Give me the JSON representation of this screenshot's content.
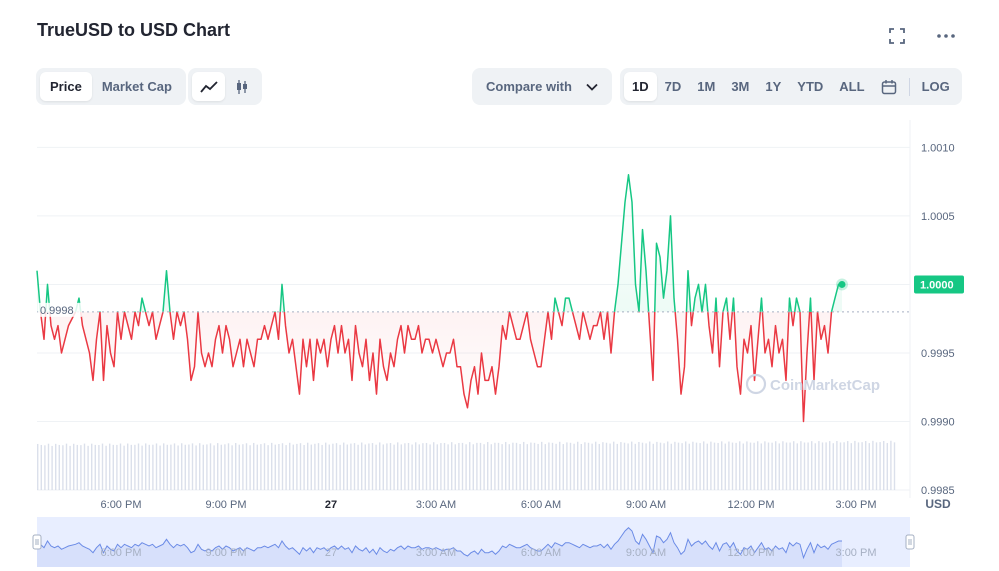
{
  "header": {
    "title": "TrueUSD to USD Chart"
  },
  "icons": {
    "expand": "expand-icon",
    "more": "more-icon",
    "line_chart": "line-chart-icon",
    "candlestick": "candlestick-icon",
    "calendar": "calendar-icon",
    "chevron": "chevron-down-icon"
  },
  "toolbar": {
    "metric_tabs": [
      "Price",
      "Market Cap"
    ],
    "active_metric": "Price",
    "compare_label": "Compare with",
    "ranges": [
      "1D",
      "7D",
      "1M",
      "3M",
      "1Y",
      "YTD",
      "ALL"
    ],
    "active_range": "1D",
    "log_label": "LOG"
  },
  "colors": {
    "up": "#16c784",
    "down": "#ea3943",
    "current_badge": "#16c784",
    "navigator_line": "#6b8be6",
    "navigator_fill": "#e8eeff",
    "volume": "#cfd6e4"
  },
  "chart_data": {
    "type": "line",
    "title": "TrueUSD to USD Chart",
    "currency": "USD",
    "baseline": 0.9998,
    "baseline_label": "0.9998",
    "current_value": 1.0,
    "current_label": "1.0000",
    "ylim": [
      0.9985,
      1.0012
    ],
    "y_ticks": [
      1.001,
      1.0005,
      0.9995,
      0.999,
      0.9985
    ],
    "y_tick_labels": [
      "1.0010",
      "1.0005",
      "0.9995",
      "0.9990",
      "0.9985"
    ],
    "x_ticks": [
      {
        "x": 3,
        "label": "6:00 PM"
      },
      {
        "x": 6,
        "label": "9:00 PM"
      },
      {
        "x": 9,
        "label": "27"
      },
      {
        "x": 12,
        "label": "3:00 AM"
      },
      {
        "x": 15,
        "label": "6:00 AM"
      },
      {
        "x": 18,
        "label": "9:00 AM"
      },
      {
        "x": 21,
        "label": "12:00 PM"
      },
      {
        "x": 24,
        "label": "3:00 PM"
      }
    ],
    "xlim": [
      0.6,
      25.2
    ],
    "x_unit": "hours",
    "watermark": "CoinMarketCap",
    "series": [
      {
        "values": [
          [
            0.6,
            1.0001
          ],
          [
            0.7,
            0.9998
          ],
          [
            0.8,
            0.9996
          ],
          [
            0.9,
            1.0
          ],
          [
            1.0,
            0.9997
          ],
          [
            1.1,
            0.9996
          ],
          [
            1.2,
            0.9997
          ],
          [
            1.3,
            0.9995
          ],
          [
            1.4,
            0.9996
          ],
          [
            1.5,
            0.9997
          ],
          [
            1.7,
            0.9998
          ],
          [
            1.8,
            0.9999
          ],
          [
            1.9,
            0.9997
          ],
          [
            2.0,
            0.9996
          ],
          [
            2.1,
            0.9995
          ],
          [
            2.2,
            0.9993
          ],
          [
            2.3,
            0.9996
          ],
          [
            2.4,
            0.9998
          ],
          [
            2.5,
            0.9993
          ],
          [
            2.6,
            0.9997
          ],
          [
            2.7,
            0.9995
          ],
          [
            2.8,
            0.9994
          ],
          [
            2.9,
            0.9998
          ],
          [
            3.0,
            0.9996
          ],
          [
            3.1,
            0.9998
          ],
          [
            3.2,
            0.9997
          ],
          [
            3.3,
            0.9996
          ],
          [
            3.4,
            0.9998
          ],
          [
            3.5,
            0.9997
          ],
          [
            3.6,
            0.9999
          ],
          [
            3.8,
            0.9997
          ],
          [
            3.9,
            0.9998
          ],
          [
            4.0,
            0.9996
          ],
          [
            4.1,
            0.9997
          ],
          [
            4.2,
            0.9998
          ],
          [
            4.3,
            1.0001
          ],
          [
            4.4,
            0.9998
          ],
          [
            4.5,
            0.9996
          ],
          [
            4.6,
            0.9998
          ],
          [
            4.7,
            0.9997
          ],
          [
            4.8,
            0.9998
          ],
          [
            4.9,
            0.9996
          ],
          [
            5.0,
            0.9993
          ],
          [
            5.1,
            0.9994
          ],
          [
            5.2,
            0.9998
          ],
          [
            5.3,
            0.9995
          ],
          [
            5.4,
            0.9994
          ],
          [
            5.5,
            0.9995
          ],
          [
            5.6,
            0.9994
          ],
          [
            5.7,
            0.9996
          ],
          [
            5.8,
            0.9997
          ],
          [
            5.9,
            0.9995
          ],
          [
            6.0,
            0.9997
          ],
          [
            6.1,
            0.9996
          ],
          [
            6.2,
            0.9994
          ],
          [
            6.3,
            0.9995
          ],
          [
            6.4,
            0.9996
          ],
          [
            6.5,
            0.9994
          ],
          [
            6.6,
            0.9996
          ],
          [
            6.7,
            0.9995
          ],
          [
            6.8,
            0.9994
          ],
          [
            6.9,
            0.9996
          ],
          [
            7.0,
            0.9996
          ],
          [
            7.1,
            0.9997
          ],
          [
            7.2,
            0.9996
          ],
          [
            7.3,
            0.9997
          ],
          [
            7.4,
            0.9998
          ],
          [
            7.5,
            0.9996
          ],
          [
            7.6,
            1.0
          ],
          [
            7.7,
            0.9997
          ],
          [
            7.8,
            0.9995
          ],
          [
            7.9,
            0.9996
          ],
          [
            8.0,
            0.9994
          ],
          [
            8.1,
            0.9992
          ],
          [
            8.2,
            0.9996
          ],
          [
            8.3,
            0.9994
          ],
          [
            8.4,
            0.9996
          ],
          [
            8.5,
            0.9993
          ],
          [
            8.6,
            0.9996
          ],
          [
            8.7,
            0.9995
          ],
          [
            8.8,
            0.9996
          ],
          [
            8.9,
            0.9994
          ],
          [
            9.0,
            0.9996
          ],
          [
            9.1,
            0.9997
          ],
          [
            9.2,
            0.9995
          ],
          [
            9.3,
            0.9997
          ],
          [
            9.4,
            0.9995
          ],
          [
            9.5,
            0.9996
          ],
          [
            9.6,
            0.9993
          ],
          [
            9.7,
            0.9997
          ],
          [
            9.8,
            0.9995
          ],
          [
            9.9,
            0.9994
          ],
          [
            10.0,
            0.9996
          ],
          [
            10.1,
            0.9993
          ],
          [
            10.2,
            0.9995
          ],
          [
            10.3,
            0.9992
          ],
          [
            10.4,
            0.9996
          ],
          [
            10.5,
            0.9994
          ],
          [
            10.6,
            0.9993
          ],
          [
            10.7,
            0.9995
          ],
          [
            10.8,
            0.9994
          ],
          [
            10.9,
            0.9996
          ],
          [
            11.0,
            0.9997
          ],
          [
            11.1,
            0.9995
          ],
          [
            11.2,
            0.9997
          ],
          [
            11.3,
            0.9996
          ],
          [
            11.4,
            0.9996
          ],
          [
            11.5,
            0.9997
          ],
          [
            11.6,
            0.9995
          ],
          [
            11.7,
            0.9996
          ],
          [
            11.8,
            0.9996
          ],
          [
            11.9,
            0.9995
          ],
          [
            12.0,
            0.9996
          ],
          [
            12.1,
            0.9995
          ],
          [
            12.2,
            0.9994
          ],
          [
            12.3,
            0.9995
          ],
          [
            12.4,
            0.9995
          ],
          [
            12.5,
            0.9996
          ],
          [
            12.6,
            0.9994
          ],
          [
            12.7,
            0.9994
          ],
          [
            12.8,
            0.9992
          ],
          [
            12.9,
            0.9991
          ],
          [
            13.0,
            0.9993
          ],
          [
            13.1,
            0.9994
          ],
          [
            13.2,
            0.9992
          ],
          [
            13.3,
            0.9995
          ],
          [
            13.4,
            0.9993
          ],
          [
            13.5,
            0.9993
          ],
          [
            13.6,
            0.9994
          ],
          [
            13.7,
            0.9992
          ],
          [
            13.8,
            0.9994
          ],
          [
            13.9,
            0.9997
          ],
          [
            14.0,
            0.9996
          ],
          [
            14.1,
            0.9998
          ],
          [
            14.2,
            0.9997
          ],
          [
            14.3,
            0.9996
          ],
          [
            14.4,
            0.9996
          ],
          [
            14.5,
            0.9997
          ],
          [
            14.6,
            0.9998
          ],
          [
            14.7,
            0.9996
          ],
          [
            14.8,
            0.9995
          ],
          [
            14.9,
            0.9994
          ],
          [
            15.0,
            0.9994
          ],
          [
            15.1,
            0.9996
          ],
          [
            15.2,
            0.9998
          ],
          [
            15.3,
            0.9996
          ],
          [
            15.4,
            0.9999
          ],
          [
            15.5,
            0.9998
          ],
          [
            15.6,
            0.9997
          ],
          [
            15.7,
            0.9999
          ],
          [
            15.8,
            0.9999
          ],
          [
            15.9,
            0.9998
          ],
          [
            16.0,
            0.9997
          ],
          [
            16.1,
            0.9996
          ],
          [
            16.2,
            0.9998
          ],
          [
            16.3,
            0.9997
          ],
          [
            16.4,
            0.9996
          ],
          [
            16.5,
            0.9997
          ],
          [
            16.6,
            0.9997
          ],
          [
            16.7,
            0.9998
          ],
          [
            16.8,
            0.9996
          ],
          [
            16.9,
            0.9998
          ],
          [
            17.0,
            0.9995
          ],
          [
            17.1,
            0.9998
          ],
          [
            17.2,
            1.0
          ],
          [
            17.3,
            1.0003
          ],
          [
            17.4,
            1.0006
          ],
          [
            17.5,
            1.0008
          ],
          [
            17.6,
            1.0006
          ],
          [
            17.7,
            1.0
          ],
          [
            17.8,
            0.9998
          ],
          [
            17.9,
            1.0004
          ],
          [
            18.0,
            1.0001
          ],
          [
            18.1,
            0.9997
          ],
          [
            18.2,
            0.9993
          ],
          [
            18.3,
            1.0003
          ],
          [
            18.4,
            1.0002
          ],
          [
            18.5,
            0.9999
          ],
          [
            18.6,
            1.0001
          ],
          [
            18.7,
            1.0005
          ],
          [
            18.8,
            0.9999
          ],
          [
            18.9,
            0.9996
          ],
          [
            19.0,
            0.9992
          ],
          [
            19.1,
            0.9994
          ],
          [
            19.2,
            1.0001
          ],
          [
            19.3,
            0.9997
          ],
          [
            19.4,
            0.9999
          ],
          [
            19.5,
            1.0
          ],
          [
            19.6,
            0.9998
          ],
          [
            19.7,
            1.0
          ],
          [
            19.8,
            0.9997
          ],
          [
            19.9,
            0.9995
          ],
          [
            20.0,
            0.9999
          ],
          [
            20.1,
            0.9994
          ],
          [
            20.2,
            0.9998
          ],
          [
            20.3,
            0.9999
          ],
          [
            20.4,
            0.9996
          ],
          [
            20.5,
            0.9999
          ],
          [
            20.6,
            0.9994
          ],
          [
            20.7,
            0.9992
          ],
          [
            20.8,
            0.9996
          ],
          [
            20.9,
            0.9995
          ],
          [
            21.0,
            0.9997
          ],
          [
            21.1,
            0.9993
          ],
          [
            21.2,
            0.9996
          ],
          [
            21.3,
            0.9999
          ],
          [
            21.4,
            0.9995
          ],
          [
            21.5,
            0.9996
          ],
          [
            21.6,
            0.9994
          ],
          [
            21.7,
            0.9997
          ],
          [
            21.8,
            0.9995
          ],
          [
            21.9,
            0.9996
          ],
          [
            22.0,
            0.9993
          ],
          [
            22.1,
            0.9999
          ],
          [
            22.2,
            0.9997
          ],
          [
            22.3,
            0.9999
          ],
          [
            22.4,
            0.9998
          ],
          [
            22.5,
            0.999
          ],
          [
            22.6,
            0.9995
          ],
          [
            22.7,
            0.9999
          ],
          [
            22.8,
            0.9993
          ],
          [
            22.9,
            0.9998
          ],
          [
            23.0,
            0.9996
          ],
          [
            23.1,
            0.9997
          ],
          [
            23.2,
            0.9995
          ],
          [
            23.3,
            0.9998
          ],
          [
            23.4,
            0.9999
          ],
          [
            23.5,
            1.0
          ],
          [
            23.6,
            1.0
          ]
        ]
      }
    ],
    "volume_visible": true
  },
  "navigator": {
    "x_labels": [
      "6:00 PM",
      "9:00 PM",
      "27",
      "3:00 AM",
      "6:00 AM",
      "9:00 AM",
      "12:00 PM",
      "3:00 PM"
    ]
  }
}
